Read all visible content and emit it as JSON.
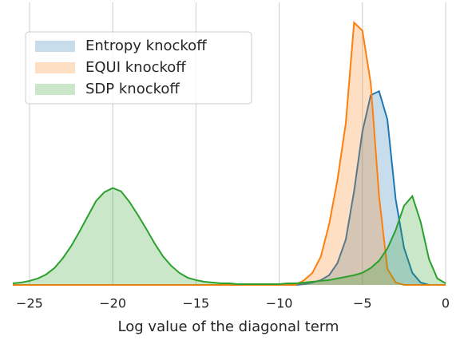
{
  "chart_data": {
    "type": "kde",
    "xlabel": "Log value of the diagonal term",
    "x": [
      -26,
      -25.5,
      -25,
      -24.5,
      -24,
      -23.5,
      -23,
      -22.5,
      -22,
      -21.5,
      -21,
      -20.5,
      -20,
      -19.5,
      -19,
      -18.5,
      -18,
      -17.5,
      -17,
      -16.5,
      -16,
      -15.5,
      -15,
      -14.5,
      -14,
      -13.5,
      -13,
      -12.5,
      -12,
      -11.5,
      -11,
      -10.5,
      -10,
      -9.5,
      -9,
      -8.5,
      -8,
      -7.5,
      -7,
      -6.5,
      -6,
      -5.5,
      -5,
      -4.5,
      -4,
      -3.5,
      -3,
      -2.5,
      -2,
      -1.5,
      -1,
      -0.5,
      0
    ],
    "series": [
      {
        "name": "Entropy knockoff",
        "color": "#1f77b4",
        "values": [
          0,
          0,
          0,
          0,
          0,
          0,
          0,
          0,
          0,
          0,
          0,
          0,
          0,
          0,
          0,
          0,
          0,
          0,
          0,
          0,
          0,
          0,
          0,
          0,
          0,
          0,
          0,
          0,
          0,
          0,
          0,
          0,
          0,
          0,
          0,
          0.001,
          0.003,
          0.006,
          0.012,
          0.027,
          0.056,
          0.116,
          0.19,
          0.235,
          0.24,
          0.205,
          0.106,
          0.046,
          0.015,
          0.003,
          0,
          0,
          0
        ]
      },
      {
        "name": "EQUI knockoff",
        "color": "#ff7f0e",
        "values": [
          0,
          0,
          0,
          0,
          0,
          0,
          0,
          0,
          0,
          0,
          0,
          0,
          0,
          0,
          0,
          0,
          0,
          0,
          0,
          0,
          0,
          0,
          0,
          0,
          0,
          0,
          0,
          0,
          0,
          0,
          0,
          0,
          0,
          0,
          0,
          0.006,
          0.015,
          0.035,
          0.075,
          0.13,
          0.2,
          0.325,
          0.315,
          0.25,
          0.11,
          0.02,
          0.003,
          0,
          0,
          0,
          0,
          0,
          0
        ]
      },
      {
        "name": "SDP knockoff",
        "color": "#2ca02c",
        "values": [
          0.002,
          0.003,
          0.005,
          0.008,
          0.013,
          0.021,
          0.033,
          0.048,
          0.066,
          0.085,
          0.104,
          0.115,
          0.12,
          0.116,
          0.103,
          0.087,
          0.07,
          0.052,
          0.036,
          0.024,
          0.015,
          0.009,
          0.006,
          0.004,
          0.003,
          0.002,
          0.002,
          0.001,
          0.001,
          0.001,
          0.001,
          0.001,
          0.001,
          0.002,
          0.002,
          0.003,
          0.004,
          0.005,
          0.006,
          0.008,
          0.01,
          0.012,
          0.015,
          0.021,
          0.03,
          0.045,
          0.068,
          0.098,
          0.11,
          0.078,
          0.032,
          0.008,
          0.002
        ]
      }
    ],
    "xlim": [
      -26.1,
      0
    ],
    "ylim": [
      0,
      0.35
    ],
    "xticks": [
      {
        "value": -25,
        "label": "−25"
      },
      {
        "value": -20,
        "label": "−20"
      },
      {
        "value": -15,
        "label": "−15"
      },
      {
        "value": -10,
        "label": "−10"
      },
      {
        "value": -5,
        "label": "−5"
      },
      0
    ],
    "grid": true,
    "legend": "upper left"
  }
}
